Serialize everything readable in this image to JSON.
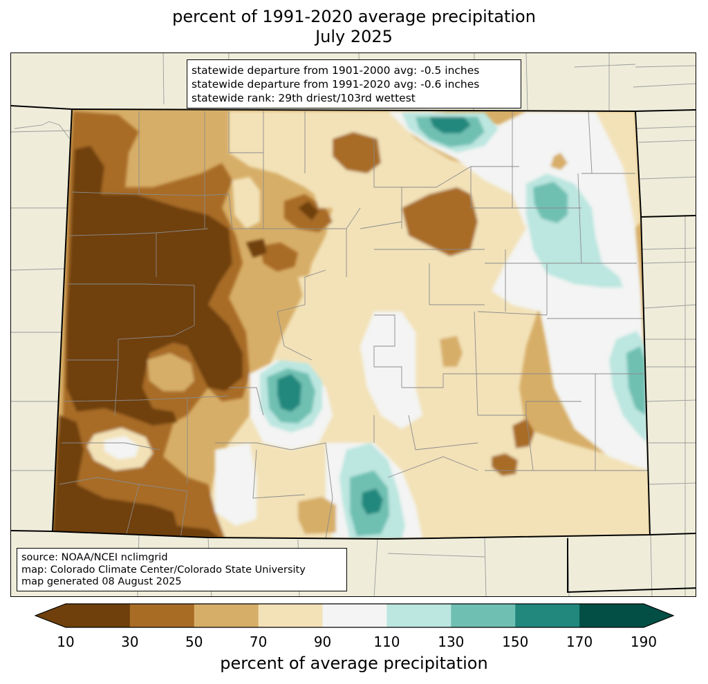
{
  "title": {
    "line1": "percent of 1991-2020 average precipitation",
    "line2": "July 2025"
  },
  "stats": {
    "line1": "statewide departure from 1901-2000 avg: -0.5 inches",
    "line2": "statewide departure from 1991-2020 avg: -0.6 inches",
    "line3": "statewide rank: 29th driest/103rd wettest"
  },
  "source": {
    "line1": "source: NOAA/NCEI nclimgrid",
    "line2": "map: Colorado Climate Center/Colorado State University",
    "line3": "map generated 08 August 2025"
  },
  "colorbar": {
    "label": "percent of average precipitation",
    "ticks": [
      "10",
      "30",
      "50",
      "70",
      "90",
      "110",
      "130",
      "150",
      "170",
      "190"
    ],
    "colors": [
      "#6f400c",
      "#a86c25",
      "#d7ae68",
      "#f3e2b8",
      "#f3f4f3",
      "#bce6e0",
      "#6fc0b2",
      "#22887e",
      "#034f45"
    ],
    "extend_low": "#6f400c",
    "extend_high": "#034f45"
  }
}
